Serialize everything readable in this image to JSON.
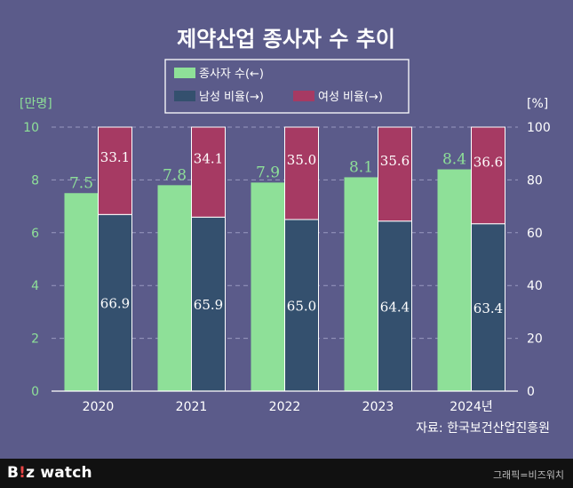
{
  "chart_data": {
    "type": "bar",
    "title": "제약산업 종사자 수 추이",
    "categories": [
      "2020",
      "2021",
      "2022",
      "2023",
      "2024년"
    ],
    "series": [
      {
        "name": "종사자 수(←)",
        "axis": "left",
        "values": [
          7.5,
          7.8,
          7.9,
          8.1,
          8.4
        ],
        "color": "#8ee098"
      },
      {
        "name": "남성 비율(→)",
        "axis": "right",
        "values": [
          66.9,
          65.9,
          65.0,
          64.4,
          63.4
        ],
        "color": "#34506e"
      },
      {
        "name": "여성 비율(→)",
        "axis": "right",
        "values": [
          33.1,
          34.1,
          35.0,
          35.6,
          36.6
        ],
        "color": "#a63a63"
      }
    ],
    "y_left": {
      "unit": "[만명]",
      "range": [
        0,
        10
      ],
      "ticks": [
        0,
        2,
        4,
        6,
        8,
        10
      ]
    },
    "y_right": {
      "unit": "[%]",
      "range": [
        0,
        100
      ],
      "ticks": [
        0,
        20,
        40,
        60,
        80,
        100
      ]
    },
    "grid": true,
    "legend_position": "top-center",
    "source": "자료: 한국보건산업진흥원"
  },
  "footer": {
    "brand_prefix": "B",
    "brand_accent": "!",
    "brand_mid": "z",
    "brand_suffix": " watch",
    "credit": "그래픽=비즈워치"
  }
}
